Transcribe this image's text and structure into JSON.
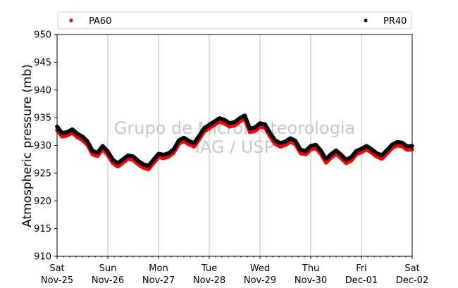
{
  "chart_data": {
    "type": "scatter",
    "title": "",
    "xlabel": "",
    "ylabel": "Atmospheric pressure (mb)",
    "ylim": [
      910,
      950
    ],
    "yticks": [
      910,
      915,
      920,
      925,
      930,
      935,
      940,
      945,
      950
    ],
    "xlim": [
      0,
      7
    ],
    "xticks": [
      {
        "day": "Sat",
        "date": "Nov-25"
      },
      {
        "day": "Sun",
        "date": "Nov-26"
      },
      {
        "day": "Mon",
        "date": "Nov-27"
      },
      {
        "day": "Tue",
        "date": "Nov-28"
      },
      {
        "day": "Wed",
        "date": "Nov-29"
      },
      {
        "day": "Thu",
        "date": "Nov-30"
      },
      {
        "day": "Fri",
        "date": "Dec-01"
      },
      {
        "day": "Sat",
        "date": "Dec-02"
      }
    ],
    "grid": "vertical",
    "legend_position": "top",
    "watermark": [
      "Grupo de Micrometeorologia",
      "IAG / USP"
    ],
    "series": [
      {
        "name": "PA60",
        "color": "#ff0000",
        "x": [
          0.0,
          0.1,
          0.2,
          0.3,
          0.4,
          0.5,
          0.6,
          0.7,
          0.8,
          0.9,
          1.0,
          1.1,
          1.2,
          1.3,
          1.4,
          1.5,
          1.6,
          1.7,
          1.8,
          1.9,
          2.0,
          2.1,
          2.2,
          2.3,
          2.4,
          2.5,
          2.6,
          2.7,
          2.8,
          2.9,
          3.0,
          3.1,
          3.2,
          3.3,
          3.4,
          3.5,
          3.6,
          3.7,
          3.8,
          3.9,
          4.0,
          4.1,
          4.2,
          4.3,
          4.4,
          4.5,
          4.6,
          4.7,
          4.8,
          4.9,
          5.0,
          5.1,
          5.2,
          5.3,
          5.4,
          5.5,
          5.6,
          5.7,
          5.8,
          5.9,
          6.0,
          6.1,
          6.2,
          6.3,
          6.4,
          6.5,
          6.6,
          6.7,
          6.8,
          6.9,
          7.0
        ],
        "y": [
          932.8,
          931.6,
          931.8,
          932.3,
          931.5,
          931.0,
          930.1,
          928.4,
          928.1,
          929.3,
          928.3,
          926.8,
          926.2,
          926.9,
          927.6,
          927.4,
          926.6,
          926.0,
          925.7,
          926.8,
          927.9,
          927.7,
          928.0,
          928.7,
          930.3,
          930.8,
          930.2,
          929.8,
          931.1,
          932.5,
          933.1,
          933.7,
          934.3,
          934.0,
          933.4,
          933.6,
          934.3,
          934.8,
          932.4,
          932.6,
          933.4,
          933.2,
          931.6,
          930.3,
          929.8,
          930.1,
          930.7,
          930.2,
          928.6,
          928.4,
          929.3,
          929.5,
          928.5,
          926.9,
          927.8,
          928.5,
          927.7,
          926.8,
          927.3,
          928.4,
          928.8,
          929.3,
          928.7,
          928.0,
          927.6,
          928.5,
          929.5,
          930.0,
          929.9,
          929.2,
          929.3
        ]
      },
      {
        "name": "PR40",
        "color": "#000000",
        "x": [
          0.0,
          0.1,
          0.2,
          0.3,
          0.4,
          0.5,
          0.6,
          0.7,
          0.8,
          0.9,
          1.0,
          1.1,
          1.2,
          1.3,
          1.4,
          1.5,
          1.6,
          1.7,
          1.8,
          1.9,
          2.0,
          2.1,
          2.2,
          2.3,
          2.4,
          2.5,
          2.6,
          2.7,
          2.8,
          2.9,
          3.0,
          3.1,
          3.2,
          3.3,
          3.4,
          3.5,
          3.6,
          3.7,
          3.8,
          3.9,
          4.0,
          4.1,
          4.2,
          4.3,
          4.4,
          4.5,
          4.6,
          4.7,
          4.8,
          4.9,
          5.0,
          5.1,
          5.2,
          5.3,
          5.4,
          5.5,
          5.6,
          5.7,
          5.8,
          5.9,
          6.0,
          6.1,
          6.2,
          6.3,
          6.4,
          6.5,
          6.6,
          6.7,
          6.8,
          6.9,
          7.0
        ],
        "y": [
          933.4,
          932.2,
          932.4,
          932.9,
          932.1,
          931.6,
          930.7,
          929.0,
          928.7,
          929.9,
          928.9,
          927.4,
          926.8,
          927.5,
          928.2,
          928.0,
          927.2,
          926.6,
          926.3,
          927.4,
          928.5,
          928.3,
          928.6,
          929.3,
          930.9,
          931.4,
          930.8,
          930.4,
          931.7,
          933.1,
          933.7,
          934.3,
          934.9,
          934.6,
          934.0,
          934.2,
          934.9,
          935.4,
          933.0,
          933.2,
          934.0,
          933.8,
          932.2,
          930.9,
          930.4,
          930.7,
          931.3,
          930.8,
          929.2,
          929.0,
          929.9,
          930.1,
          929.1,
          927.5,
          928.4,
          929.1,
          928.3,
          927.4,
          927.9,
          929.0,
          929.4,
          929.9,
          929.3,
          928.6,
          928.2,
          929.1,
          930.1,
          930.6,
          930.5,
          929.8,
          929.9
        ]
      }
    ]
  }
}
